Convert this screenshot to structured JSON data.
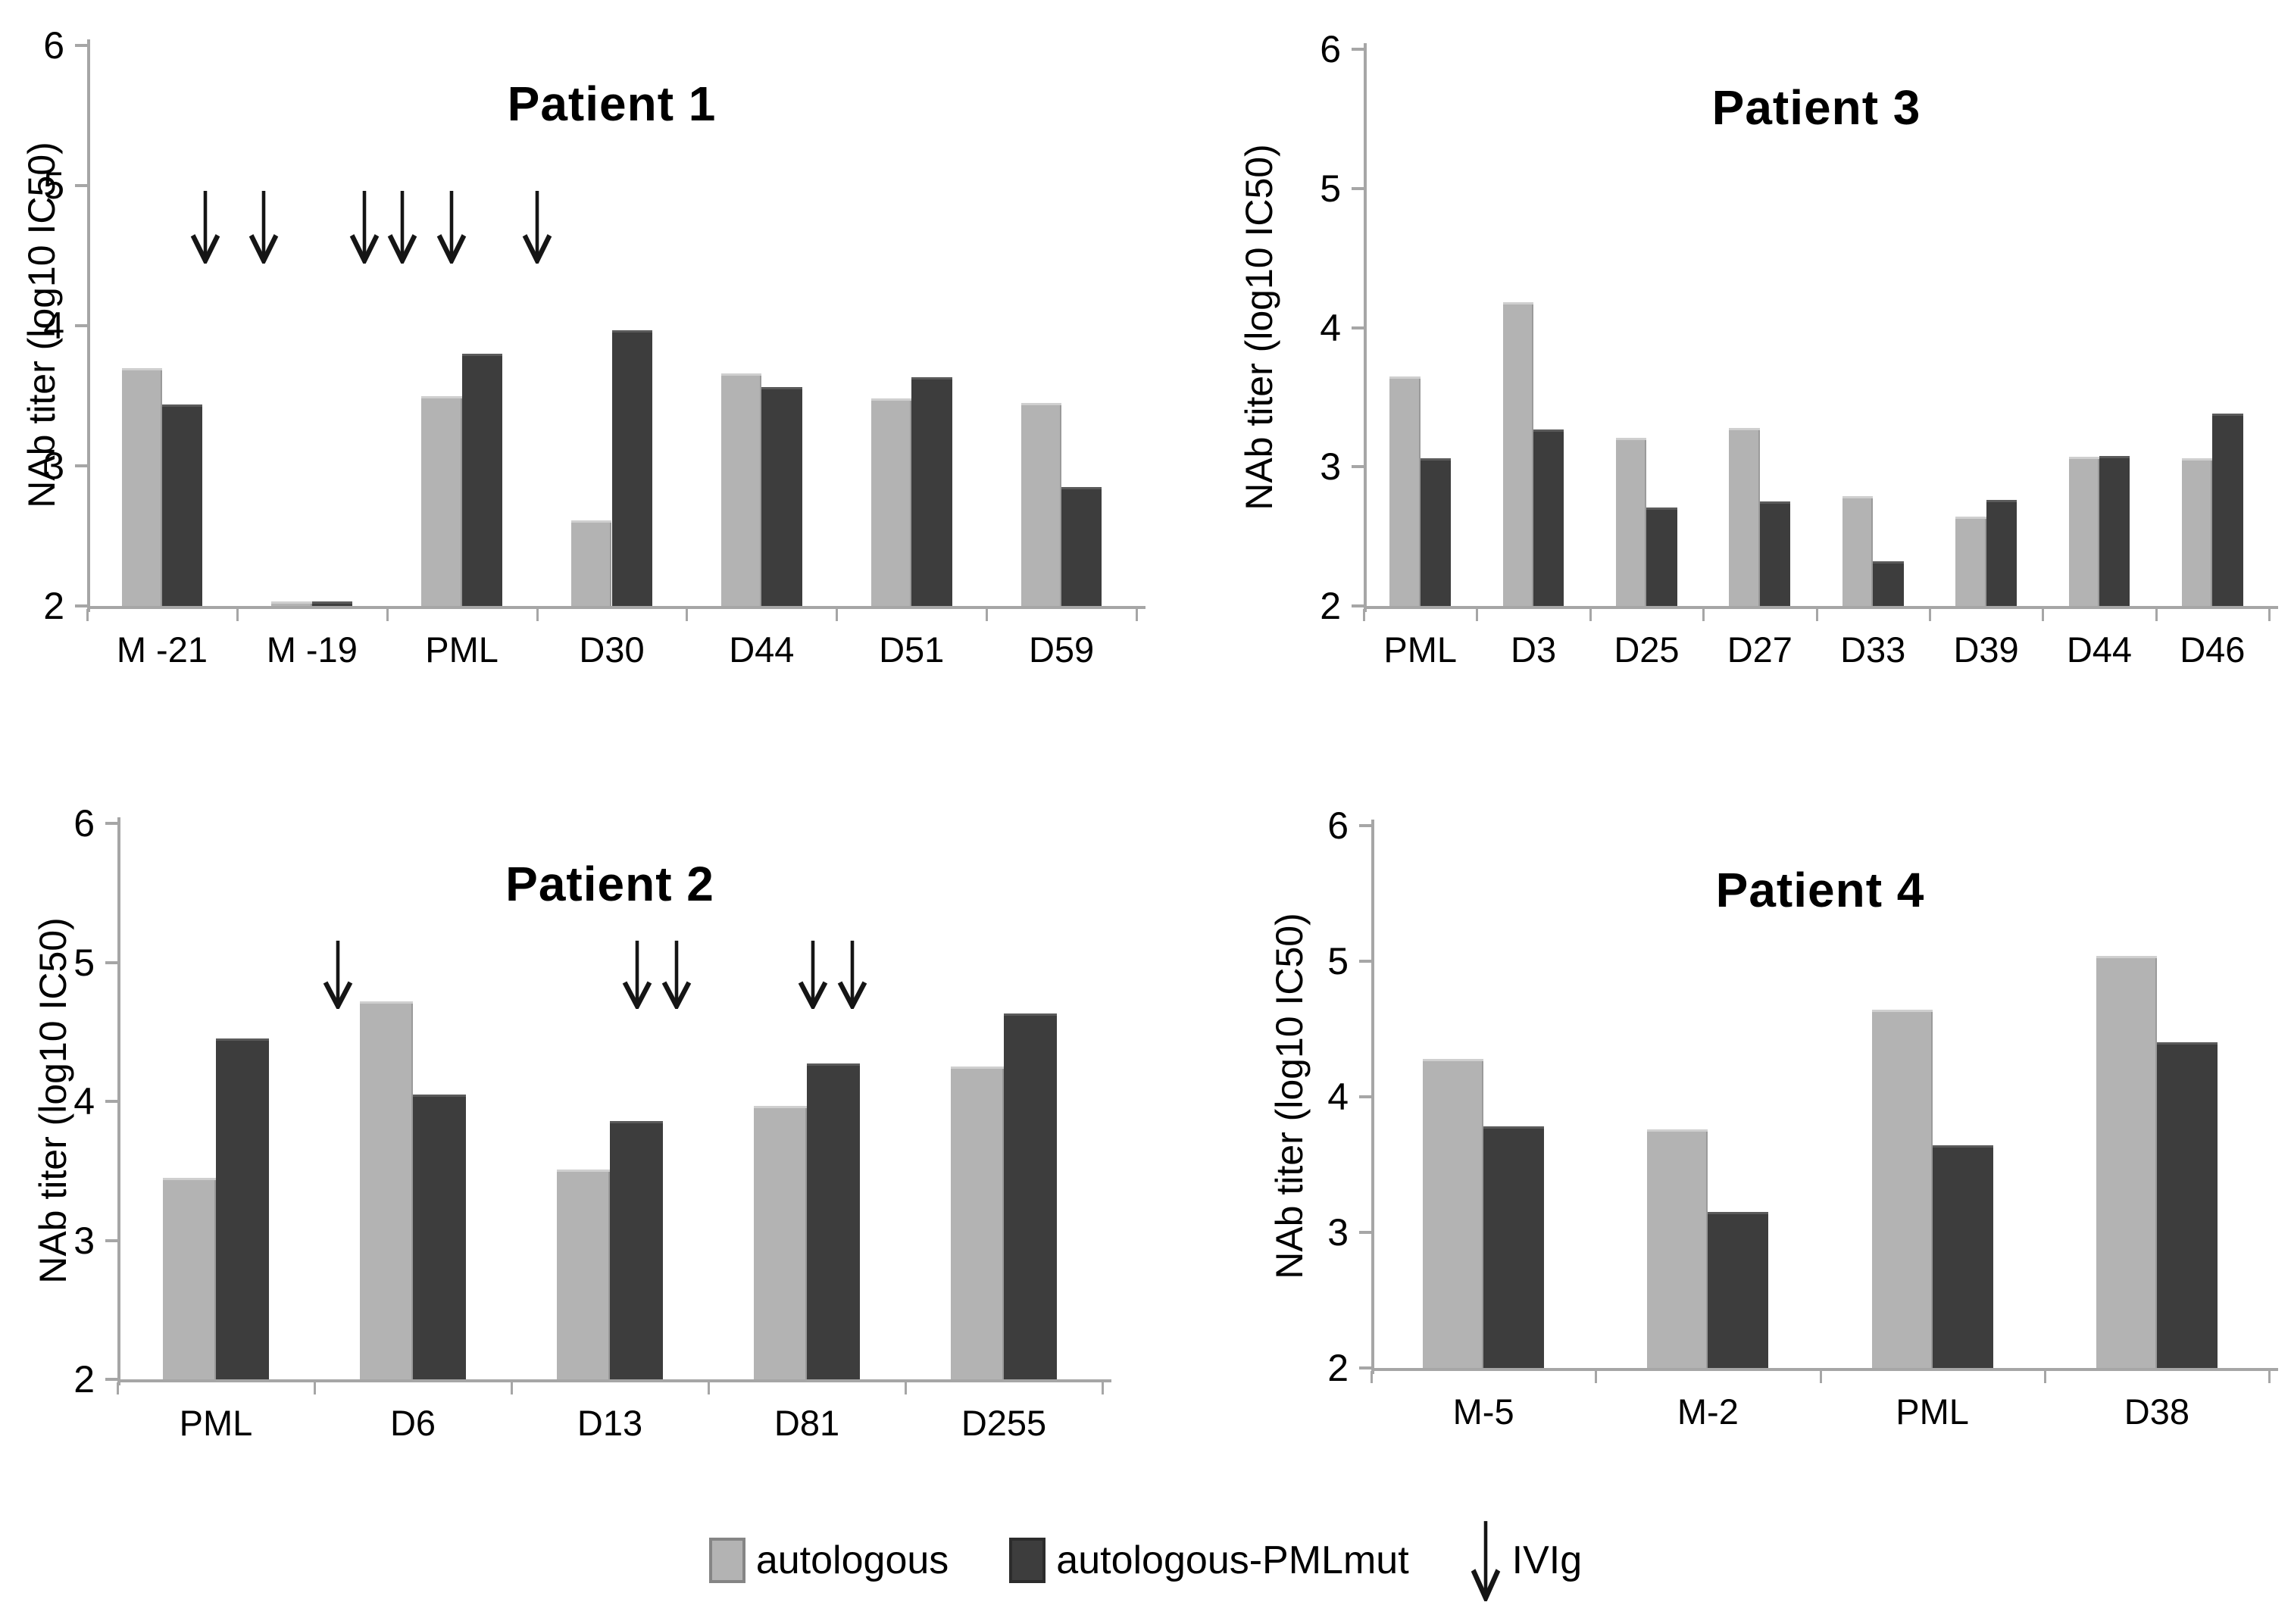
{
  "figure": {
    "background": "#ffffff",
    "y_axis_label": "NAb titer (log10 IC50)"
  },
  "colors": {
    "bar_light": "#b3b3b3",
    "bar_dark": "#3d3d3d",
    "axis": "#a6a6a6",
    "arrow": "#151515",
    "text": "#000000"
  },
  "legend": {
    "items": [
      {
        "swatch": "light",
        "label": "autologous"
      },
      {
        "swatch": "dark",
        "label": "autologous-PMLmut"
      },
      {
        "swatch": "arrow",
        "label": "IVIg"
      }
    ]
  },
  "chart_data": [
    {
      "type": "bar",
      "title": "Patient 1",
      "ylabel": "NAb titer (log10 IC50)",
      "ylim": [
        2,
        6
      ],
      "yticks": [
        6,
        5,
        4,
        3,
        2
      ],
      "grid": false,
      "categories": [
        "M -21",
        "M -19",
        "PML",
        "D30",
        "D44",
        "D51",
        "D59"
      ],
      "series": [
        {
          "name": "autologous",
          "values": [
            3.7,
            2.03,
            3.5,
            2.61,
            3.66,
            3.48,
            3.45
          ]
        },
        {
          "name": "autologous-PMLmut",
          "values": [
            3.44,
            2.03,
            3.8,
            3.97,
            3.56,
            3.63,
            2.85
          ]
        }
      ],
      "ivig_arrows_cat_pos": [
        0.79,
        1.18,
        1.85,
        2.1,
        2.43,
        3.0
      ]
    },
    {
      "type": "bar",
      "title": "Patient 2",
      "ylabel": "NAb titer (log10 IC50)",
      "ylim": [
        2,
        6
      ],
      "yticks": [
        6,
        5,
        4,
        3,
        2
      ],
      "grid": false,
      "categories": [
        "PML",
        "D6",
        "D13",
        "D81",
        "D255"
      ],
      "series": [
        {
          "name": "autologous",
          "values": [
            3.45,
            4.72,
            3.51,
            3.97,
            4.25
          ]
        },
        {
          "name": "autologous-PMLmut",
          "values": [
            4.45,
            4.05,
            3.86,
            4.27,
            4.63
          ]
        }
      ],
      "ivig_arrows_cat_pos": [
        1.12,
        2.64,
        2.84,
        3.53,
        3.73
      ]
    },
    {
      "type": "bar",
      "title": "Patient 3",
      "ylabel": "NAb titer (log10 IC50)",
      "ylim": [
        2,
        6
      ],
      "yticks": [
        6,
        5,
        4,
        3,
        2
      ],
      "grid": false,
      "categories": [
        "PML",
        "D3",
        "D25",
        "D27",
        "D33",
        "D39",
        "D44",
        "D46"
      ],
      "series": [
        {
          "name": "autologous",
          "values": [
            3.65,
            4.18,
            3.21,
            3.28,
            2.79,
            2.64,
            3.07,
            3.06
          ]
        },
        {
          "name": "autologous-PMLmut",
          "values": [
            3.06,
            3.27,
            2.71,
            2.75,
            2.32,
            2.76,
            3.08,
            3.38
          ]
        }
      ],
      "ivig_arrows_cat_pos": []
    },
    {
      "type": "bar",
      "title": "Patient 4",
      "ylabel": "NAb titer (log10 IC50)",
      "ylim": [
        2,
        6
      ],
      "yticks": [
        6,
        5,
        4,
        3,
        2
      ],
      "grid": false,
      "categories": [
        "M-5",
        "M-2",
        "PML",
        "D38"
      ],
      "series": [
        {
          "name": "autologous",
          "values": [
            4.28,
            3.76,
            4.64,
            5.04
          ]
        },
        {
          "name": "autologous-PMLmut",
          "values": [
            3.78,
            3.15,
            3.64,
            4.4
          ]
        }
      ],
      "ivig_arrows_cat_pos": []
    }
  ]
}
